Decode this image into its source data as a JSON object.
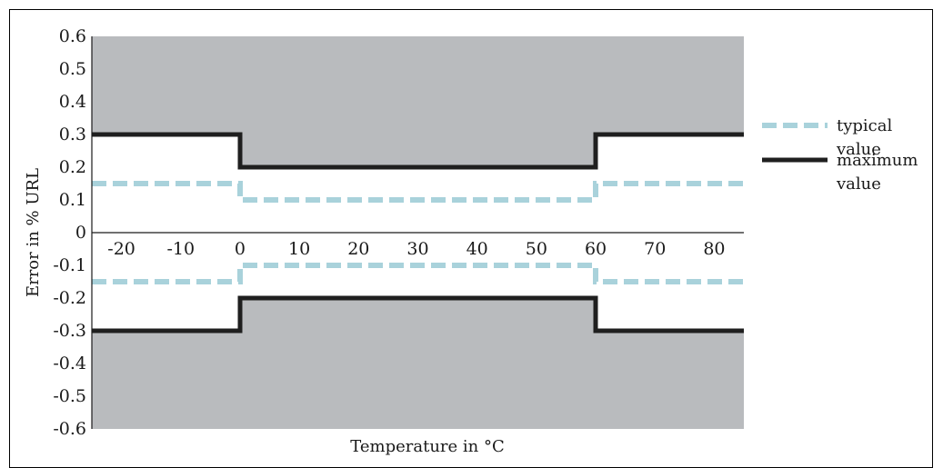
{
  "chart_data": {
    "type": "line",
    "title": "",
    "xlabel": "Temperature in °C",
    "ylabel": "Error in % URL",
    "xlim": [
      -25,
      85
    ],
    "ylim": [
      -0.6,
      0.6
    ],
    "xticks": [
      -20,
      -10,
      0,
      10,
      20,
      30,
      40,
      50,
      60,
      70,
      80
    ],
    "xtick_labels": [
      "-20",
      "-10",
      "0",
      "10",
      "20",
      "30",
      "40",
      "50",
      "60",
      "70",
      "80"
    ],
    "yticks": [
      0.6,
      0.5,
      0.4,
      0.3,
      0.2,
      0.1,
      0,
      -0.1,
      -0.2,
      -0.3,
      -0.4,
      -0.5,
      -0.6
    ],
    "ytick_labels": [
      "0.6",
      "0.5",
      "0.4",
      "0.3",
      "0.2",
      "0.1",
      "0",
      "-0.1",
      "-0.2",
      "-0.3",
      "-0.4",
      "-0.5",
      "-0.6"
    ],
    "grid": false,
    "legend_position": "right",
    "series": [
      {
        "name": "typical value",
        "style": "dashed",
        "color": "#a9d2db",
        "upper": {
          "x": [
            -25,
            0,
            0,
            60,
            60,
            85
          ],
          "y": [
            0.15,
            0.15,
            0.1,
            0.1,
            0.15,
            0.15
          ]
        },
        "lower": {
          "x": [
            -25,
            0,
            0,
            60,
            60,
            85
          ],
          "y": [
            -0.15,
            -0.15,
            -0.1,
            -0.1,
            -0.15,
            -0.15
          ]
        }
      },
      {
        "name": "maximum value",
        "style": "solid",
        "color": "#1f1f1f",
        "upper": {
          "x": [
            -25,
            0,
            0,
            60,
            60,
            85
          ],
          "y": [
            0.3,
            0.3,
            0.2,
            0.2,
            0.3,
            0.3
          ]
        },
        "lower": {
          "x": [
            -25,
            0,
            0,
            60,
            60,
            85
          ],
          "y": [
            -0.3,
            -0.3,
            -0.2,
            -0.2,
            -0.3,
            -0.3
          ]
        }
      }
    ],
    "shading": {
      "color": "#b9bbbe",
      "description_region": "outside maximum band"
    },
    "legend": [
      {
        "line1": "typical",
        "line2": "value"
      },
      {
        "line1": "maximum",
        "line2": "value"
      }
    ]
  }
}
